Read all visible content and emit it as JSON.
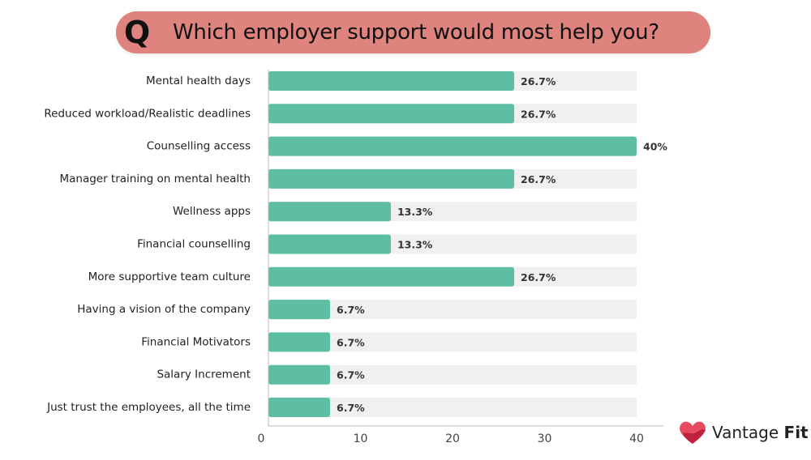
{
  "header": {
    "badge": "Q",
    "title": "Which employer support would most help you?"
  },
  "chart_data": {
    "type": "bar",
    "orientation": "horizontal",
    "categories": [
      "Mental health days",
      "Reduced workload/Realistic deadlines",
      "Counselling access",
      "Manager training on mental health",
      "Wellness apps",
      "Financial counselling",
      "More supportive team culture",
      "Having a vision of the company",
      "Financial Motivators",
      "Salary Increment",
      "Just trust the employees, all the time"
    ],
    "values": [
      26.7,
      26.7,
      40,
      26.7,
      13.3,
      13.3,
      26.7,
      6.7,
      6.7,
      6.7,
      6.7
    ],
    "value_labels": [
      "26.7%",
      "26.7%",
      "40%",
      "26.7%",
      "13.3%",
      "13.3%",
      "26.7%",
      "6.7%",
      "6.7%",
      "6.7%",
      "6.7%"
    ],
    "xlim": [
      0,
      40
    ],
    "xticks": [
      "0",
      "10",
      "20",
      "30",
      "40"
    ],
    "grid": false,
    "colors": {
      "bar": "#5ebea4",
      "track": "#f0f0f0",
      "axis": "#bbbbbb",
      "title_pill": "#de837d"
    }
  },
  "logo": {
    "brand": "Vantage",
    "brand_bold": "Fit",
    "icon": "heart-logo-icon",
    "colors": {
      "heart_primary": "#e84a5f",
      "heart_secondary": "#c0213f"
    }
  }
}
